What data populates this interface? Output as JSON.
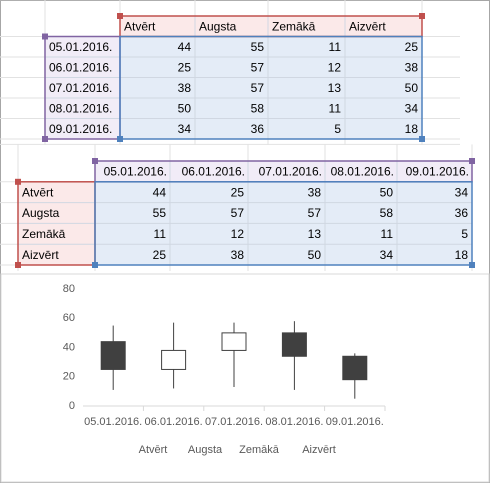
{
  "table1": {
    "headers": [
      "Atvērt",
      "Augsta",
      "Zemākā",
      "Aizvērt"
    ],
    "rows": [
      {
        "label": "05.01.2016.",
        "cells": [
          44,
          55,
          11,
          25
        ]
      },
      {
        "label": "06.01.2016.",
        "cells": [
          25,
          57,
          12,
          38
        ]
      },
      {
        "label": "07.01.2016.",
        "cells": [
          38,
          57,
          13,
          50
        ]
      },
      {
        "label": "08.01.2016.",
        "cells": [
          50,
          58,
          11,
          34
        ]
      },
      {
        "label": "09.01.2016.",
        "cells": [
          34,
          36,
          5,
          18
        ]
      }
    ]
  },
  "table2": {
    "headers": [
      "05.01.2016.",
      "06.01.2016.",
      "07.01.2016.",
      "08.01.2016.",
      "09.01.2016."
    ],
    "rows": [
      {
        "label": "Atvērt",
        "cells": [
          44,
          25,
          38,
          50,
          34
        ]
      },
      {
        "label": "Augsta",
        "cells": [
          55,
          57,
          57,
          58,
          36
        ]
      },
      {
        "label": "Zemākā",
        "cells": [
          11,
          12,
          13,
          11,
          5
        ]
      },
      {
        "label": "Aizvērt",
        "cells": [
          25,
          38,
          50,
          34,
          18
        ]
      }
    ]
  },
  "chart_data": {
    "type": "candlestick",
    "categories": [
      "05.01.2016.",
      "06.01.2016.",
      "07.01.2016.",
      "08.01.2016.",
      "09.01.2016."
    ],
    "series": [
      {
        "name": "Atvērt",
        "values": [
          44,
          25,
          38,
          50,
          34
        ]
      },
      {
        "name": "Augsta",
        "values": [
          55,
          57,
          57,
          58,
          36
        ]
      },
      {
        "name": "Zemākā",
        "values": [
          11,
          12,
          13,
          11,
          5
        ]
      },
      {
        "name": "Aizvērt",
        "values": [
          25,
          38,
          50,
          34,
          18
        ]
      }
    ],
    "color": "#404040",
    "ylim": [
      0,
      80
    ],
    "yticks": [
      0,
      20,
      40,
      60,
      80
    ],
    "grid": false
  }
}
